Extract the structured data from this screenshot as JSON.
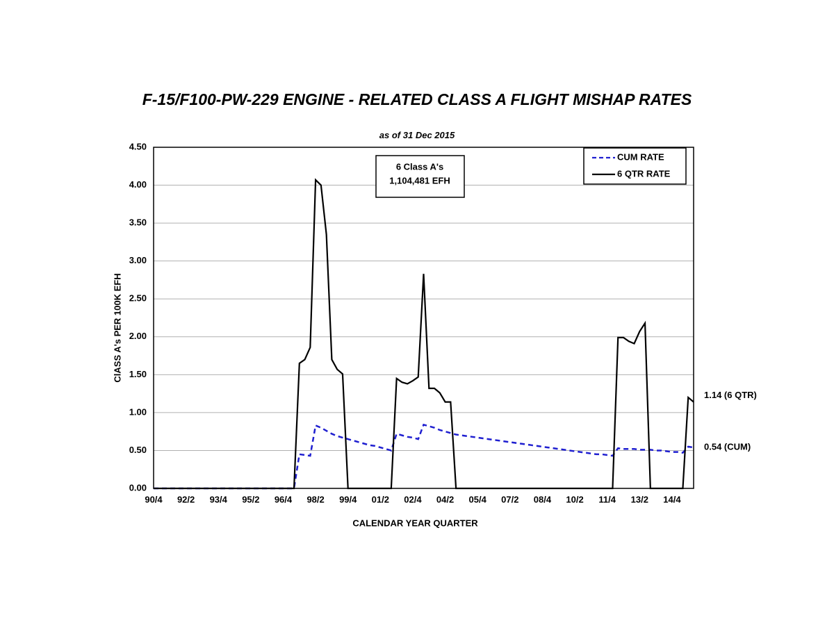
{
  "chart_data": {
    "type": "line",
    "title": "F-15/F100-PW-229 ENGINE - RELATED CLASS A FLIGHT MISHAP RATES",
    "subtitle": "as of 31 Dec 2015",
    "x_label": "CALENDAR YEAR QUARTER",
    "y_label": "ClASS A's PER 100K EFH",
    "annotation": [
      "6 Class A's",
      "1,104,481 EFH"
    ],
    "end_labels": [
      "0.54 (CUM)",
      "1.14 (6 QTR)"
    ],
    "categories": [
      "90/4",
      null,
      null,
      null,
      null,
      null,
      "92/2",
      null,
      null,
      null,
      null,
      null,
      "93/4",
      null,
      null,
      null,
      null,
      null,
      "95/2",
      null,
      null,
      null,
      null,
      null,
      "96/4",
      null,
      null,
      null,
      null,
      null,
      "98/2",
      null,
      null,
      null,
      null,
      null,
      "99/4",
      null,
      null,
      null,
      null,
      null,
      "01/2",
      null,
      null,
      null,
      null,
      null,
      "02/4",
      null,
      null,
      null,
      null,
      null,
      "04/2",
      null,
      null,
      null,
      null,
      null,
      "05/4",
      null,
      null,
      null,
      null,
      null,
      "07/2",
      null,
      null,
      null,
      null,
      null,
      "08/4",
      null,
      null,
      null,
      null,
      null,
      "10/2",
      null,
      null,
      null,
      null,
      null,
      "11/4",
      null,
      null,
      null,
      null,
      null,
      "13/2",
      null,
      null,
      null,
      null,
      null,
      "14/4",
      null,
      null,
      null,
      null
    ],
    "series": [
      {
        "name": "CUM RATE",
        "color": "#1f1fd0",
        "style": "dashed",
        "values": [
          0,
          0,
          0,
          0,
          0,
          0,
          0,
          0,
          0,
          0,
          0,
          0,
          0,
          0,
          0,
          0,
          0,
          0,
          0,
          0,
          0,
          0,
          0,
          0,
          0,
          0,
          0,
          0.45,
          0.44,
          0.43,
          0.83,
          0.8,
          0.76,
          0.72,
          0.69,
          0.67,
          0.65,
          0.63,
          0.61,
          0.59,
          0.57,
          0.56,
          0.54,
          0.52,
          0.5,
          0.72,
          0.7,
          0.68,
          0.67,
          0.65,
          0.84,
          0.82,
          0.8,
          0.77,
          0.75,
          0.73,
          0.71,
          0.7,
          0.69,
          0.68,
          0.67,
          0.66,
          0.65,
          0.64,
          0.63,
          0.62,
          0.61,
          0.6,
          0.59,
          0.58,
          0.57,
          0.56,
          0.55,
          0.54,
          0.53,
          0.52,
          0.51,
          0.5,
          0.49,
          0.48,
          0.47,
          0.46,
          0.45,
          0.45,
          0.44,
          0.43,
          0.53,
          0.52,
          0.52,
          0.52,
          0.51,
          0.51,
          0.51,
          0.5,
          0.5,
          0.49,
          0.48,
          0.48,
          0.47,
          0.55,
          0.54
        ]
      },
      {
        "name": "6 QTR RATE",
        "color": "#000000",
        "style": "solid",
        "values": [
          0,
          0,
          0,
          0,
          0,
          0,
          0,
          0,
          0,
          0,
          0,
          0,
          0,
          0,
          0,
          0,
          0,
          0,
          0,
          0,
          0,
          0,
          0,
          0,
          0,
          0,
          0,
          1.65,
          1.7,
          1.86,
          4.07,
          4.0,
          3.35,
          1.7,
          1.57,
          1.51,
          0,
          0,
          0,
          0,
          0,
          0,
          0,
          0,
          0,
          1.45,
          1.4,
          1.38,
          1.42,
          1.47,
          2.83,
          1.32,
          1.32,
          1.26,
          1.14,
          1.14,
          0,
          0,
          0,
          0,
          0,
          0,
          0,
          0,
          0,
          0,
          0,
          0,
          0,
          0,
          0,
          0,
          0,
          0,
          0,
          0,
          0,
          0,
          0,
          0,
          0,
          0,
          0,
          0,
          0,
          0,
          1.99,
          1.99,
          1.94,
          1.91,
          2.07,
          2.18,
          0,
          0,
          0,
          0,
          0,
          0,
          0,
          1.2,
          1.14
        ]
      }
    ],
    "ylim": [
      0,
      4.5
    ],
    "yticks": [
      {
        "value": 0,
        "label": "0.00"
      },
      {
        "value": 0.5,
        "label": "0.50"
      },
      {
        "value": 1,
        "label": "1.00"
      },
      {
        "value": 1.5,
        "label": "1.50"
      },
      {
        "value": 2,
        "label": "2.00"
      },
      {
        "value": 2.5,
        "label": "2.50"
      },
      {
        "value": 3,
        "label": "3.00"
      },
      {
        "value": 3.5,
        "label": "3.50"
      },
      {
        "value": 4,
        "label": "4.00"
      },
      {
        "value": 4.5,
        "label": "4.50"
      }
    ],
    "grid": true,
    "legend": "top-right"
  }
}
